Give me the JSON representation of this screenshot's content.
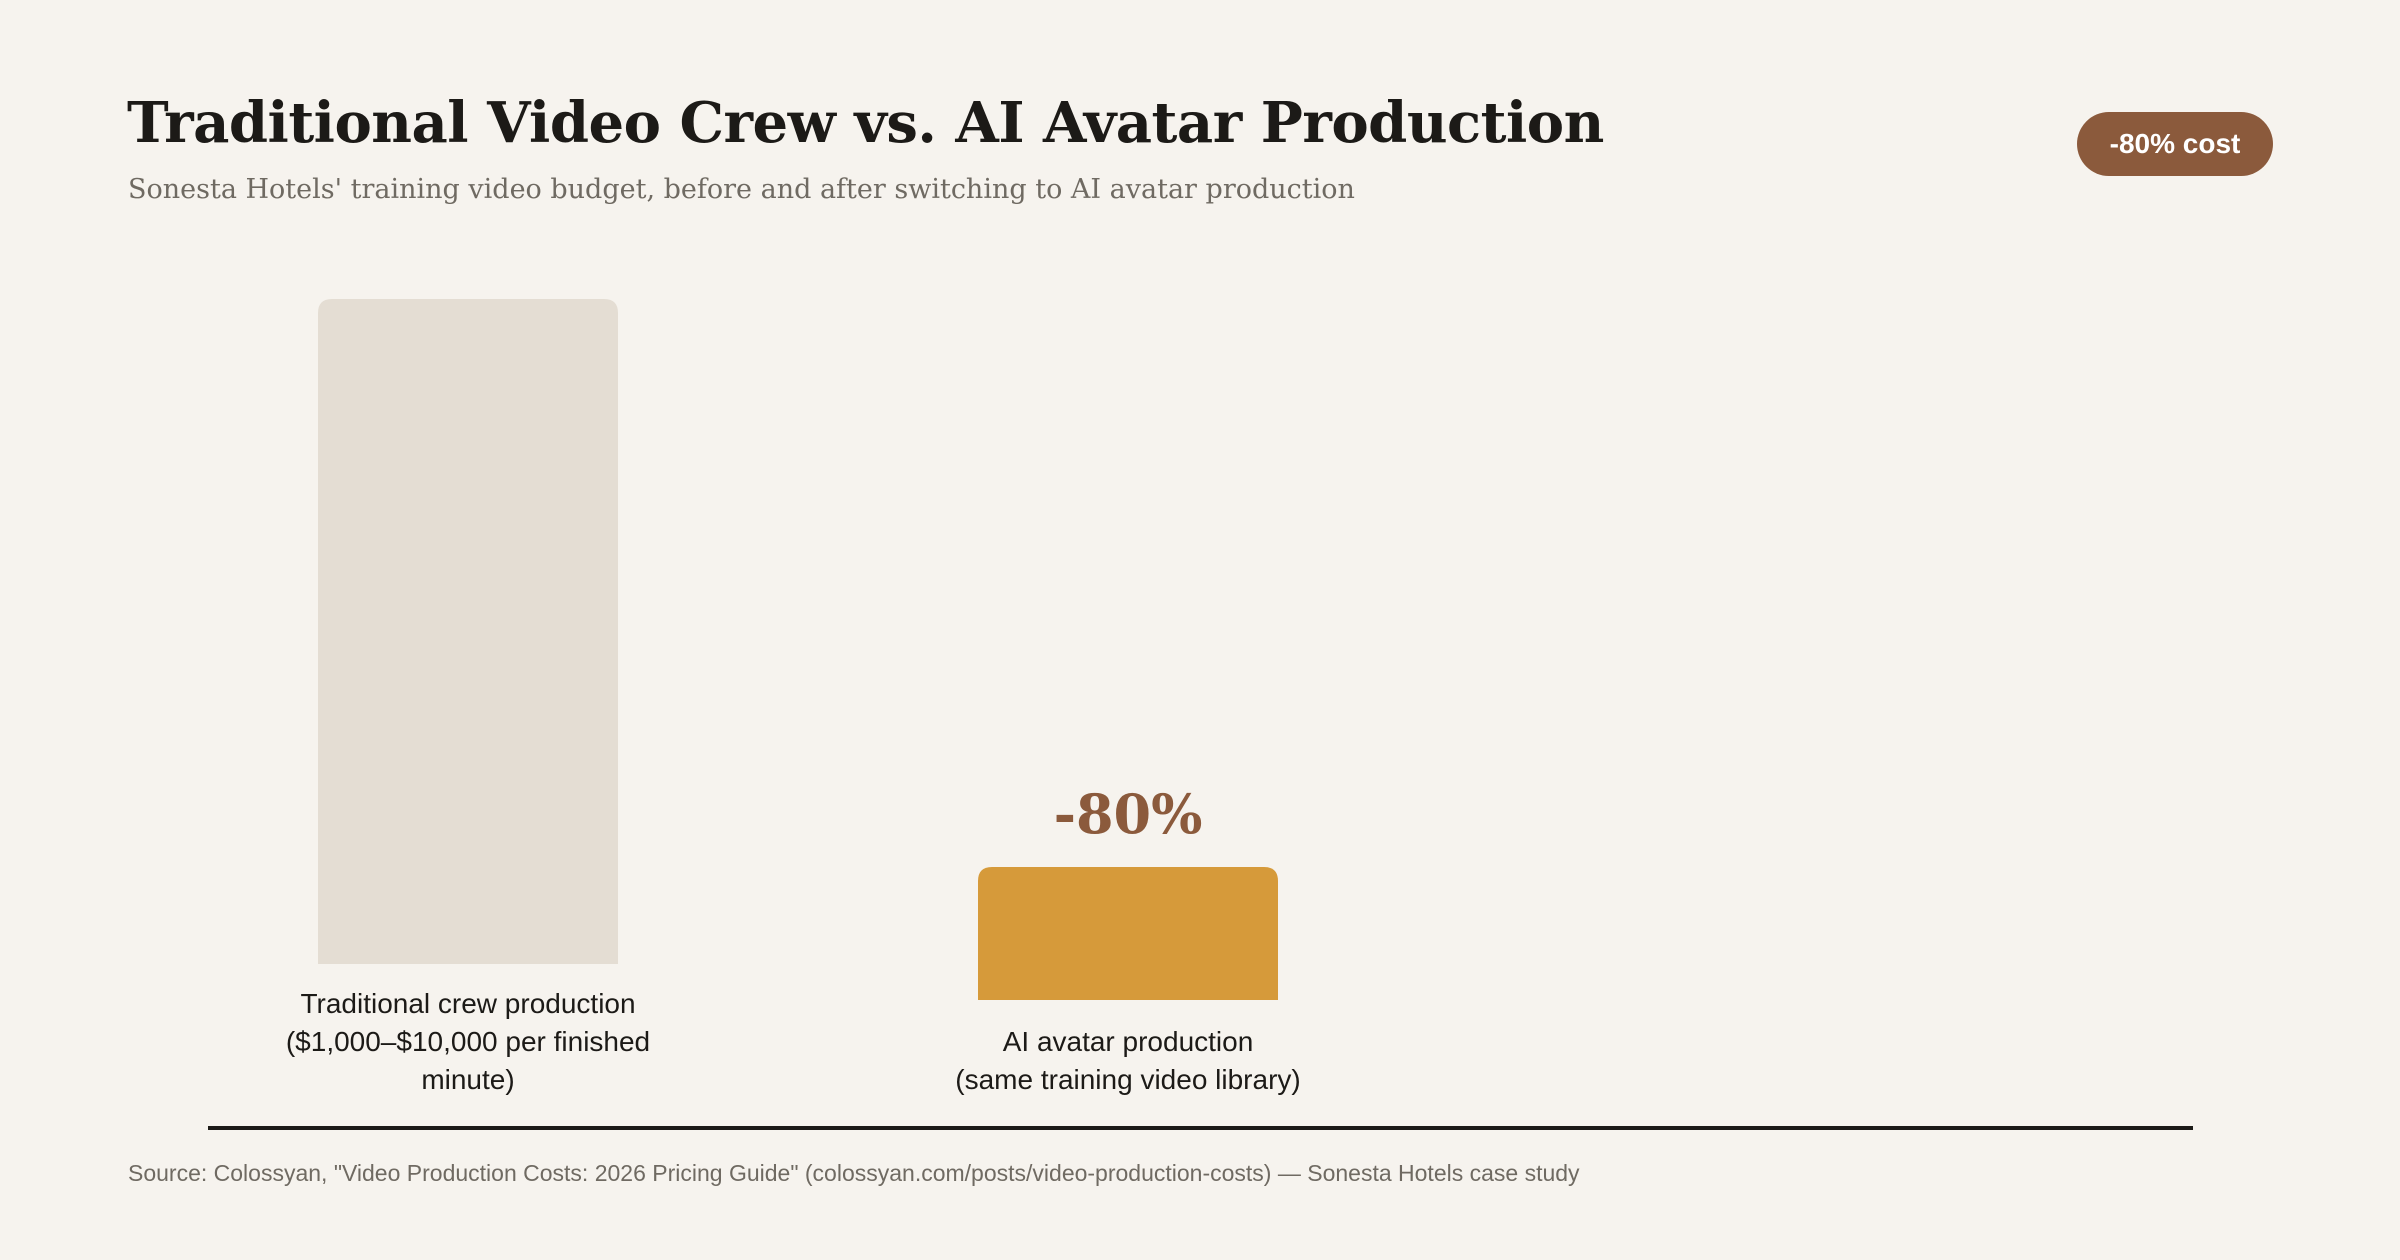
{
  "header": {
    "title": "Traditional Video Crew vs. AI Avatar Production",
    "subtitle": "Sonesta Hotels' training video budget, before and after switching to AI avatar production",
    "badge": "-80% cost"
  },
  "chart_data": {
    "type": "bar",
    "title": "Traditional Video Crew vs. AI Avatar Production",
    "subtitle": "Sonesta Hotels' training video budget, before and after switching to AI avatar production",
    "categories": [
      "Traditional crew production ($1,000–$10,000 per finished minute)",
      "AI avatar production (same training video library)"
    ],
    "values": [
      100,
      20
    ],
    "value_labels": [
      "",
      "-80%"
    ],
    "ylim": [
      0,
      100
    ],
    "xlabel": "",
    "ylabel": "",
    "grid": false,
    "legend": "none",
    "colors": [
      "#e4ddd3",
      "#d69a3a"
    ],
    "annotation_color": "#8b5a3c"
  },
  "labels": {
    "bar_1": [
      "Traditional crew production",
      "($1,000–$10,000 per finished",
      "minute)"
    ],
    "bar_2": [
      "AI avatar production",
      "(same training video library)"
    ]
  },
  "footer": {
    "source": "Source: Colossyan, \"Video Production Costs: 2026 Pricing Guide\" (colossyan.com/posts/video-production-costs) — Sonesta Hotels case study"
  }
}
